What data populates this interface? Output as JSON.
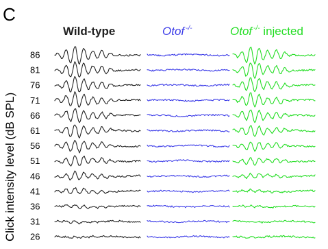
{
  "panel_label": "C",
  "colors": {
    "wild_type": "#222222",
    "knockout": "#3b3be8",
    "injected": "#22dd22"
  },
  "headers": {
    "wild_type": "Wild-type",
    "knockout_gene": "Otof",
    "knockout_sup": "-/-",
    "injected_gene": "Otof",
    "injected_sup": "-/-",
    "injected_suffix": " injected"
  },
  "y_axis_label": "Click  intensity level  (dB SPL)",
  "chart_data": {
    "type": "line",
    "levels": [
      "86",
      "81",
      "76",
      "71",
      "66",
      "61",
      "56",
      "51",
      "46",
      "41",
      "36",
      "31",
      "26"
    ],
    "series": [
      {
        "name": "Wild-type",
        "amplitude": [
          1.0,
          0.95,
          0.9,
          0.85,
          0.8,
          0.75,
          0.7,
          0.62,
          0.5,
          0.35,
          0.22,
          0.15,
          0.1
        ]
      },
      {
        "name": "Otof -/-",
        "amplitude": [
          0.08,
          0.07,
          0.07,
          0.06,
          0.06,
          0.06,
          0.06,
          0.06,
          0.06,
          0.06,
          0.06,
          0.05,
          0.05
        ]
      },
      {
        "name": "Otof -/- injected",
        "amplitude": [
          1.0,
          0.9,
          0.85,
          0.8,
          0.72,
          0.65,
          0.55,
          0.42,
          0.3,
          0.15,
          0.08,
          0.06,
          0.05
        ]
      }
    ]
  }
}
